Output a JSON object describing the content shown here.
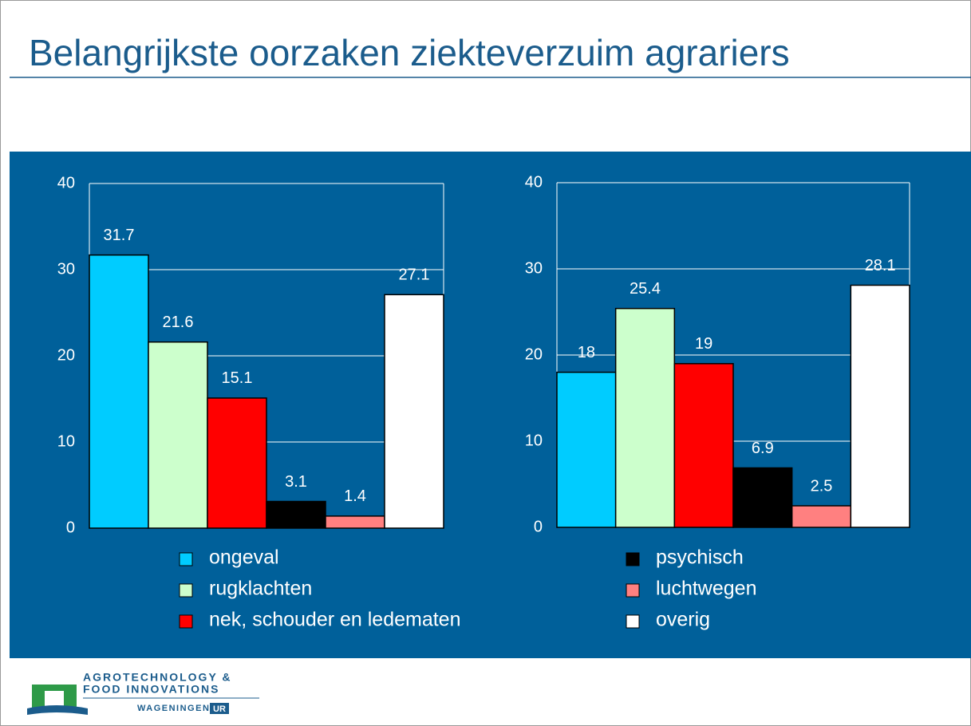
{
  "title": "Belangrijkste oorzaken ziekteverzuim agrariers",
  "legend": [
    {
      "name": "ongeval",
      "color": "#00ccff"
    },
    {
      "name": "rugklachten",
      "color": "#ccffcc"
    },
    {
      "name": "nek, schouder en ledematen",
      "color": "#ff0000"
    },
    {
      "name": "psychisch",
      "color": "#000000"
    },
    {
      "name": "luchtwegen",
      "color": "#ff8080"
    },
    {
      "name": "overig",
      "color": "#ffffff"
    }
  ],
  "chart_data": [
    {
      "type": "bar",
      "values": [
        31.7,
        21.6,
        15.1,
        3.1,
        1.4,
        27.1
      ],
      "ylim": [
        0,
        40
      ],
      "yticks": [
        0,
        10,
        20,
        30,
        40
      ],
      "grid": true
    },
    {
      "type": "bar",
      "values": [
        18,
        25.4,
        19,
        6.9,
        2.5,
        28.1
      ],
      "ylim": [
        0,
        40
      ],
      "yticks": [
        0,
        10,
        20,
        30,
        40
      ],
      "grid": true
    }
  ],
  "footer": {
    "line1": "AGROTECHNOLOGY &",
    "line2": "FOOD INNOVATIONS",
    "line3": "WAGENINGEN",
    "badge": "UR"
  }
}
